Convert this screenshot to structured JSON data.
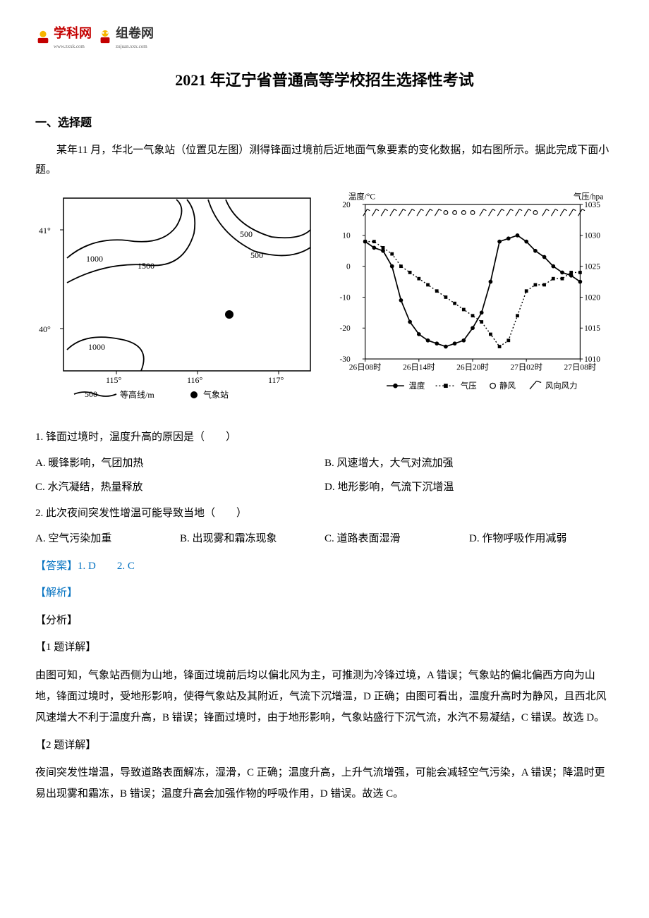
{
  "logos": {
    "xueke": {
      "name": "学科网",
      "sub": "www.zxxk.com",
      "color1": "#f7b500",
      "color2": "#c40000",
      "text_color": "#c40000"
    },
    "zujuan": {
      "name": "组卷网",
      "sub": "zujuan.xxx.com",
      "color1": "#f7b500",
      "color2": "#c40000",
      "text_color": "#333333"
    }
  },
  "title": "2021 年辽宁省普通高等学校招生选择性考试",
  "section_heading": "一、选择题",
  "intro": "某年11 月，华北一气象站（位置见左图）测得锋面过境前后近地面气象要素的变化数据，如右图所示。据此完成下面小题。",
  "map": {
    "lat_labels": [
      "41°",
      "40°"
    ],
    "lon_labels": [
      "115°",
      "116°",
      "117°"
    ],
    "contours": [
      "1000",
      "1500",
      "1000",
      "500",
      "500"
    ],
    "legend_contour": "500",
    "legend_contour_text": "等高线/m",
    "legend_station": "气象站"
  },
  "chart": {
    "y_left_label": "温度/°C",
    "y_right_label": "气压/hpa",
    "y_left_ticks": [
      "20",
      "10",
      "0",
      "-10",
      "-20",
      "-30"
    ],
    "y_right_ticks": [
      "1035",
      "1030",
      "1025",
      "1020",
      "1015",
      "1010"
    ],
    "x_ticks": [
      "26日08时",
      "26日14时",
      "26日20时",
      "27日02时",
      "27日08时"
    ],
    "legend": {
      "temp": "温度",
      "pressure": "气压",
      "calm": "静风",
      "wind": "风向风力"
    },
    "temp_series": [
      8,
      6,
      5,
      0,
      -11,
      -18,
      -22,
      -24,
      -25,
      -26,
      -25,
      -24,
      -20,
      -15,
      -5,
      8,
      9,
      10,
      8,
      5,
      3,
      0,
      -2,
      -3,
      -5
    ],
    "pressure_series": [
      1029,
      1029,
      1028,
      1027,
      1025,
      1024,
      1023,
      1022,
      1021,
      1020,
      1019,
      1018,
      1017,
      1016,
      1014,
      1012,
      1013,
      1017,
      1021,
      1022,
      1022,
      1023,
      1023,
      1024,
      1024
    ]
  },
  "q1": {
    "text": "1. 锋面过境时，温度升高的原因是（　　）",
    "options": {
      "A": "A. 暖锋影响，气团加热",
      "B": "B. 风速增大，大气对流加强",
      "C": "C. 水汽凝结，热量释放",
      "D": "D. 地形影响，气流下沉增温"
    }
  },
  "q2": {
    "text": "2. 此次夜间突发性增温可能导致当地（　　）",
    "options": {
      "A": "A. 空气污染加重",
      "B": "B. 出现雾和霜冻现象",
      "C": "C. 道路表面湿滑",
      "D": "D. 作物呼吸作用减弱"
    }
  },
  "answer": "【答案】1. D　　2. C",
  "analysis_label": "【解析】",
  "fenxi": "【分析】",
  "q1_detail_heading": "【1 题详解】",
  "q1_detail": "由图可知，气象站西侧为山地，锋面过境前后均以偏北风为主，可推测为冷锋过境，A 错误；气象站的偏北偏西方向为山地，锋面过境时，受地形影响，使得气象站及其附近，气流下沉增温，D 正确；由图可看出，温度升高时为静风，且西北风风速增大不利于温度升高，B 错误；锋面过境时，由于地形影响，气象站盛行下沉气流，水汽不易凝结，C 错误。故选 D。",
  "q2_detail_heading": "【2 题详解】",
  "q2_detail": "夜间突发性增温，导致道路表面解冻，湿滑，C 正确；温度升高，上升气流增强，可能会减轻空气污染，A 错误；降温时更易出现雾和霜冻，B 错误；温度升高会加强作物的呼吸作用，D 错误。故选 C。"
}
